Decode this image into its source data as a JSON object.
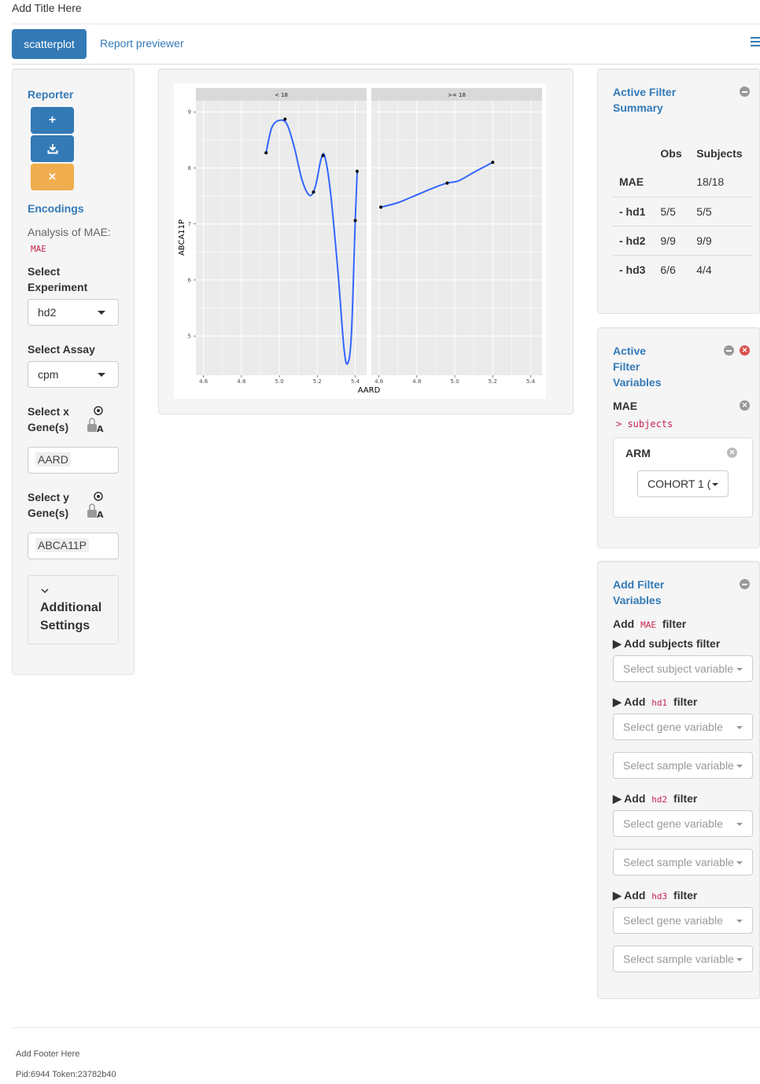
{
  "app": {
    "title": "Add Title Here"
  },
  "tabs": [
    {
      "label": "scatterplot",
      "active": true
    },
    {
      "label": "Report previewer"
    }
  ],
  "left": {
    "reporter_heading": "Reporter",
    "buttons": [
      {
        "icon": "plus-icon",
        "glyph": "+",
        "color": "#337ab7"
      },
      {
        "icon": "download-icon",
        "glyph": "⤓",
        "color": "#337ab7"
      },
      {
        "icon": "close-icon",
        "glyph": "✕",
        "color": "#f0ad4e"
      }
    ],
    "encodings_heading": "Encodings",
    "analysis_label": "Analysis of MAE:",
    "analysis_code": "MAE",
    "select_experiment_label": "Select Experiment",
    "experiment_value": "hd2",
    "select_assay_label": "Select Assay",
    "assay_value": "cpm",
    "select_x_label": "Select x Gene(s)",
    "x_value": "AARD",
    "select_y_label": "Select y Gene(s)",
    "y_value": "ABCA11P",
    "additional_settings": "Additional Settings"
  },
  "chart_data": {
    "type": "scatter",
    "title": "",
    "xlabel": "AARD",
    "ylabel": "ABCA11P",
    "grid": true,
    "smoother": true,
    "ylim": [
      4.3,
      9.2
    ],
    "xlim": [
      4.56,
      5.46
    ],
    "x_ticks": [
      "4.6",
      "4.8",
      "5.0",
      "5.2",
      "5.4"
    ],
    "y_ticks": [
      "5",
      "6",
      "7",
      "8",
      "9"
    ],
    "panels": [
      {
        "label": "< 18",
        "points": [
          {
            "x": 4.93,
            "y": 8.27
          },
          {
            "x": 5.03,
            "y": 8.87
          },
          {
            "x": 5.18,
            "y": 7.57
          },
          {
            "x": 5.23,
            "y": 8.22
          },
          {
            "x": 5.4,
            "y": 7.06
          },
          {
            "x": 5.41,
            "y": 7.94
          }
        ],
        "smooth": [
          {
            "x": 4.93,
            "y": 8.27
          },
          {
            "x": 4.96,
            "y": 8.72
          },
          {
            "x": 5.0,
            "y": 8.85
          },
          {
            "x": 5.04,
            "y": 8.78
          },
          {
            "x": 5.08,
            "y": 8.35
          },
          {
            "x": 5.12,
            "y": 7.78
          },
          {
            "x": 5.16,
            "y": 7.51
          },
          {
            "x": 5.19,
            "y": 7.67
          },
          {
            "x": 5.22,
            "y": 8.16
          },
          {
            "x": 5.24,
            "y": 8.2
          },
          {
            "x": 5.27,
            "y": 7.55
          },
          {
            "x": 5.31,
            "y": 6.1
          },
          {
            "x": 5.34,
            "y": 4.8
          },
          {
            "x": 5.36,
            "y": 4.51
          },
          {
            "x": 5.38,
            "y": 5.05
          },
          {
            "x": 5.4,
            "y": 7.06
          },
          {
            "x": 5.41,
            "y": 7.94
          }
        ]
      },
      {
        "label": ">= 18",
        "points": [
          {
            "x": 4.61,
            "y": 7.3
          },
          {
            "x": 4.96,
            "y": 7.73
          },
          {
            "x": 5.2,
            "y": 8.1
          }
        ],
        "smooth": [
          {
            "x": 4.61,
            "y": 7.3
          },
          {
            "x": 4.7,
            "y": 7.38
          },
          {
            "x": 4.8,
            "y": 7.52
          },
          {
            "x": 4.9,
            "y": 7.66
          },
          {
            "x": 4.96,
            "y": 7.73
          },
          {
            "x": 5.02,
            "y": 7.77
          },
          {
            "x": 5.1,
            "y": 7.92
          },
          {
            "x": 5.2,
            "y": 8.1
          }
        ]
      }
    ],
    "line_color": "#3366ff",
    "panel_bg": "#ebebeb",
    "strip_bg": "#d9d9d9"
  },
  "summary": {
    "heading": "Active Filter Summary",
    "columns": [
      "",
      "Obs",
      "Subjects"
    ],
    "rows": [
      [
        "MAE",
        "",
        "18/18"
      ],
      [
        "- hd1",
        "5/5",
        "5/5"
      ],
      [
        "- hd2",
        "9/9",
        "9/9"
      ],
      [
        "- hd3",
        "6/6",
        "4/4"
      ]
    ]
  },
  "active_vars": {
    "heading": "Active Filter Variables",
    "mae_label": "MAE",
    "subjects_code": "> subjects",
    "arm_label": "ARM",
    "arm_value": "COHORT 1 ("
  },
  "add_vars": {
    "heading": "Add Filter Variables",
    "add_word": "Add",
    "filter_word": "filter",
    "mae_code": "MAE",
    "subjects_filter": "Add subjects filter",
    "subject_placeholder": "Select subject variable",
    "gene_placeholder": "Select gene variable",
    "sample_placeholder": "Select sample variable",
    "experiments": [
      "hd1",
      "hd2",
      "hd3"
    ]
  },
  "footer": {
    "text": "Add Footer Here",
    "pid": "Pid:6944 Token:23782b40"
  }
}
